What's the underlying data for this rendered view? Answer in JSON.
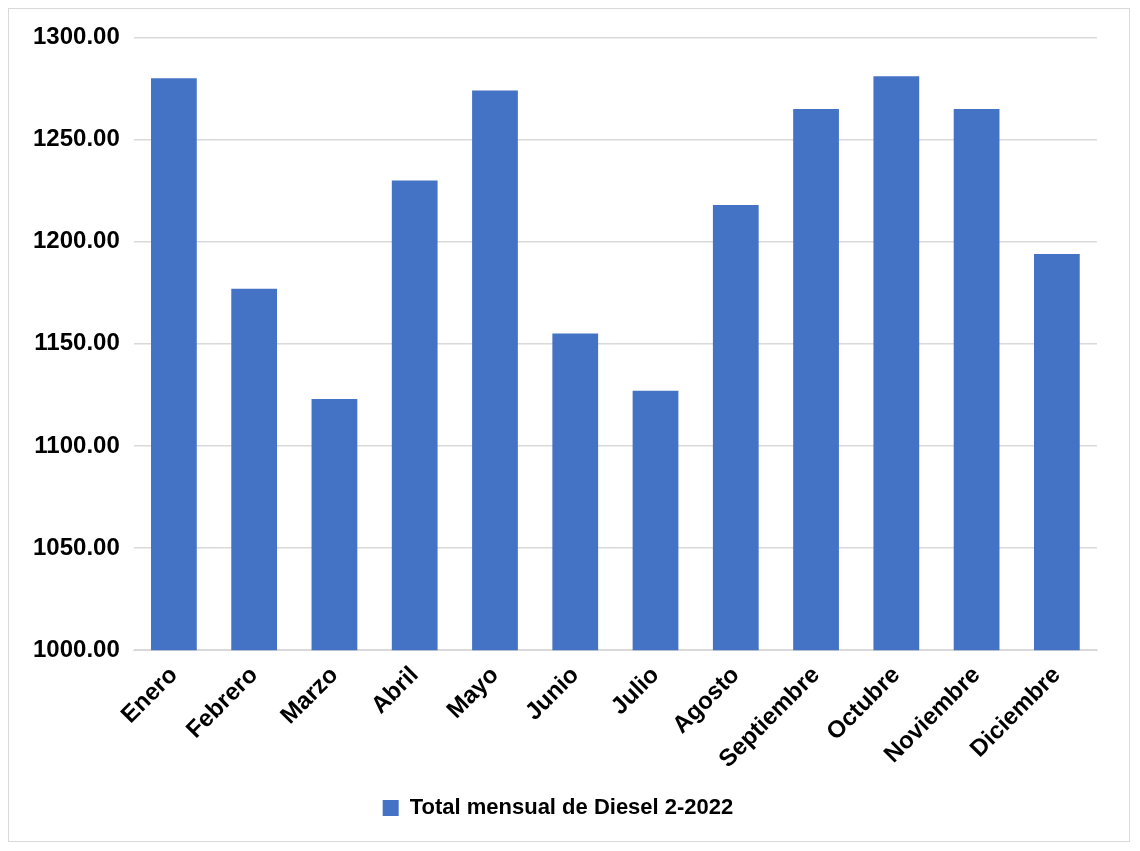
{
  "chart_data": {
    "type": "bar",
    "categories": [
      "Enero",
      "Febrero",
      "Marzo",
      "Abril",
      "Mayo",
      "Junio",
      "Julio",
      "Agosto",
      "Septiembre",
      "Octubre",
      "Noviembre",
      "Diciembre"
    ],
    "series": [
      {
        "name": "Total mensual de Diesel 2-2022",
        "color": "#4472c4",
        "values": [
          1280,
          1177,
          1123,
          1230,
          1274,
          1155,
          1127,
          1218,
          1265,
          1281,
          1265,
          1194
        ]
      }
    ],
    "ylim": [
      1000,
      1300
    ],
    "yticks": [
      {
        "value": 1000,
        "label": "1000.00"
      },
      {
        "value": 1050,
        "label": "1050.00"
      },
      {
        "value": 1100,
        "label": "1100.00"
      },
      {
        "value": 1150,
        "label": "1150.00"
      },
      {
        "value": 1200,
        "label": "1200.00"
      },
      {
        "value": 1250,
        "label": "1250.00"
      },
      {
        "value": 1300,
        "label": "1300.00"
      }
    ],
    "grid": "y",
    "legend": "bottom"
  }
}
